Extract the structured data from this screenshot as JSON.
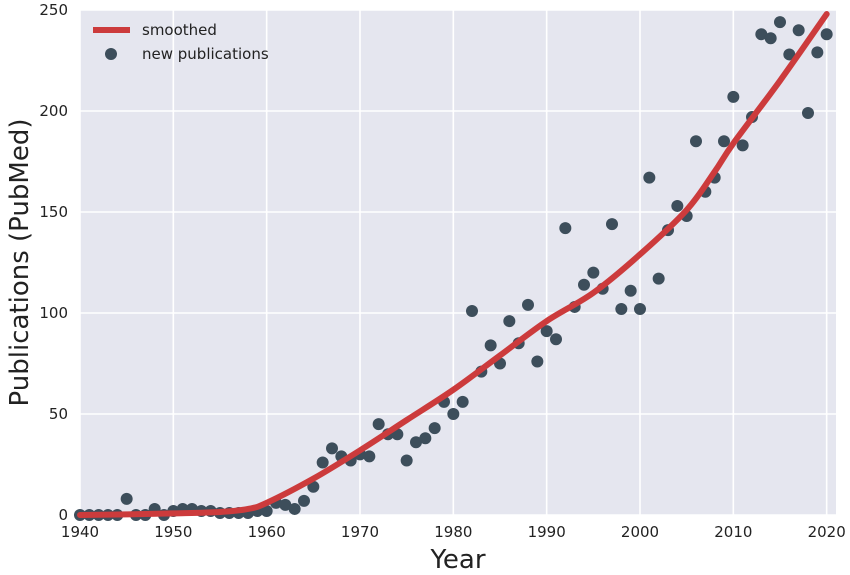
{
  "chart_data": {
    "type": "scatter",
    "xlabel": "Year",
    "ylabel": "Publications (PubMed)",
    "xlim": [
      1940,
      2021
    ],
    "ylim": [
      0,
      250
    ],
    "x_ticks": [
      1940,
      1950,
      1960,
      1970,
      1980,
      1990,
      2000,
      2010,
      2020
    ],
    "y_ticks": [
      0,
      50,
      100,
      150,
      200,
      250
    ],
    "grid": true,
    "legend_position": "top-left",
    "colors": {
      "background": "#e5e6ef",
      "grid": "#ffffff",
      "smoothed": "#cc3b3c",
      "points": "#3d4e5b"
    },
    "series": [
      {
        "name": "smoothed",
        "type": "line",
        "x": [
          1940,
          1945,
          1950,
          1955,
          1958,
          1960,
          1965,
          1970,
          1975,
          1980,
          1985,
          1990,
          1995,
          2000,
          2005,
          2008,
          2010,
          2015,
          2020
        ],
        "y": [
          0,
          0.3,
          0.8,
          1.5,
          3,
          6,
          18,
          32,
          47,
          62,
          79,
          96,
          110,
          129,
          151,
          170,
          184,
          215,
          248
        ]
      },
      {
        "name": "new publications",
        "type": "scatter",
        "x": [
          1940,
          1941,
          1942,
          1943,
          1944,
          1945,
          1946,
          1947,
          1948,
          1949,
          1950,
          1951,
          1952,
          1953,
          1954,
          1955,
          1956,
          1957,
          1958,
          1959,
          1960,
          1961,
          1962,
          1963,
          1964,
          1965,
          1966,
          1967,
          1968,
          1969,
          1970,
          1971,
          1972,
          1973,
          1974,
          1975,
          1976,
          1977,
          1978,
          1979,
          1980,
          1981,
          1982,
          1983,
          1984,
          1985,
          1986,
          1987,
          1988,
          1989,
          1990,
          1991,
          1992,
          1993,
          1994,
          1995,
          1996,
          1997,
          1998,
          1999,
          2000,
          2001,
          2002,
          2003,
          2004,
          2005,
          2006,
          2007,
          2008,
          2009,
          2010,
          2011,
          2012,
          2013,
          2014,
          2015,
          2016,
          2017,
          2018,
          2019,
          2020
        ],
        "y": [
          0,
          0,
          0,
          0,
          0,
          8,
          0,
          0,
          3,
          0,
          2,
          3,
          3,
          2,
          2,
          1,
          1,
          1,
          1,
          2,
          2,
          6,
          5,
          3,
          7,
          14,
          26,
          33,
          29,
          27,
          30,
          29,
          45,
          40,
          40,
          27,
          36,
          38,
          43,
          56,
          50,
          56,
          101,
          71,
          84,
          75,
          96,
          85,
          104,
          76,
          91,
          87,
          142,
          103,
          114,
          120,
          112,
          144,
          102,
          111,
          102,
          167,
          117,
          141,
          153,
          148,
          185,
          160,
          167,
          185,
          207,
          183,
          197,
          238,
          236,
          244,
          228,
          240,
          199,
          229,
          238
        ]
      }
    ]
  }
}
